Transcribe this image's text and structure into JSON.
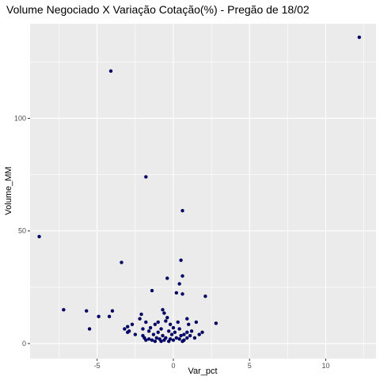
{
  "chart_data": {
    "type": "scatter",
    "title": "Volume Negociado X Variação Cotação(%) - Pregão de 18/02",
    "xlabel": "Var_pct",
    "ylabel": "Volume_MM",
    "xlim": [
      -9.4,
      13.3
    ],
    "ylim": [
      -6.7,
      142
    ],
    "x_ticks": [
      -5,
      0,
      5,
      10
    ],
    "y_ticks": [
      0,
      50,
      100
    ],
    "x_tick_labels": [
      "-5",
      "0",
      "5",
      "10"
    ],
    "y_tick_labels": [
      "0",
      "50",
      "100"
    ],
    "grid": true,
    "point_color": "#00008B",
    "panel_color": "#EBEBEB",
    "points": [
      {
        "x": 12.2,
        "y": 136
      },
      {
        "x": -4.1,
        "y": 121
      },
      {
        "x": -1.8,
        "y": 74
      },
      {
        "x": 0.6,
        "y": 59
      },
      {
        "x": -8.8,
        "y": 47.5
      },
      {
        "x": 0.5,
        "y": 37
      },
      {
        "x": -3.4,
        "y": 36
      },
      {
        "x": 0.6,
        "y": 30
      },
      {
        "x": -0.4,
        "y": 29
      },
      {
        "x": 0.4,
        "y": 26.5
      },
      {
        "x": -1.4,
        "y": 23.5
      },
      {
        "x": 0.2,
        "y": 22.5
      },
      {
        "x": 0.6,
        "y": 22
      },
      {
        "x": 2.1,
        "y": 21
      },
      {
        "x": -7.2,
        "y": 15
      },
      {
        "x": -0.7,
        "y": 15
      },
      {
        "x": -5.7,
        "y": 14.5
      },
      {
        "x": -4.0,
        "y": 14.5
      },
      {
        "x": -0.6,
        "y": 13.5
      },
      {
        "x": -2.1,
        "y": 13
      },
      {
        "x": -4.2,
        "y": 12
      },
      {
        "x": -4.9,
        "y": 12
      },
      {
        "x": -0.4,
        "y": 11.5
      },
      {
        "x": -2.2,
        "y": 11
      },
      {
        "x": 0.9,
        "y": 11
      },
      {
        "x": -0.5,
        "y": 10
      },
      {
        "x": -1.8,
        "y": 9.5
      },
      {
        "x": -1.0,
        "y": 9.5
      },
      {
        "x": 0.3,
        "y": 9.5
      },
      {
        "x": 1.5,
        "y": 9.5
      },
      {
        "x": 2.8,
        "y": 9
      },
      {
        "x": -2.7,
        "y": 8.5
      },
      {
        "x": -1.2,
        "y": 8.5
      },
      {
        "x": -0.2,
        "y": 8.5
      },
      {
        "x": 1.0,
        "y": 8.5
      },
      {
        "x": -3.0,
        "y": 7.5
      },
      {
        "x": -1.5,
        "y": 7
      },
      {
        "x": 0.0,
        "y": 7
      },
      {
        "x": -5.5,
        "y": 6.5
      },
      {
        "x": -3.2,
        "y": 6.5
      },
      {
        "x": -2.0,
        "y": 6.5
      },
      {
        "x": -0.8,
        "y": 6.5
      },
      {
        "x": 0.4,
        "y": 6.5
      },
      {
        "x": -2.9,
        "y": 5.5
      },
      {
        "x": -1.6,
        "y": 5.5
      },
      {
        "x": -0.3,
        "y": 5.5
      },
      {
        "x": 1.2,
        "y": 5.5
      },
      {
        "x": -3.0,
        "y": 5
      },
      {
        "x": -1.0,
        "y": 5
      },
      {
        "x": 0.1,
        "y": 5
      },
      {
        "x": 0.9,
        "y": 5
      },
      {
        "x": 1.9,
        "y": 5
      },
      {
        "x": -2.5,
        "y": 4
      },
      {
        "x": -1.3,
        "y": 4
      },
      {
        "x": -0.1,
        "y": 4
      },
      {
        "x": 0.7,
        "y": 4
      },
      {
        "x": 1.7,
        "y": 4
      },
      {
        "x": -2.0,
        "y": 3.5
      },
      {
        "x": -0.7,
        "y": 3.5
      },
      {
        "x": 0.5,
        "y": 3.5
      },
      {
        "x": 1.1,
        "y": 3.5
      },
      {
        "x": -1.9,
        "y": 2.5
      },
      {
        "x": -1.1,
        "y": 2.5
      },
      {
        "x": -0.5,
        "y": 2.5
      },
      {
        "x": 0.2,
        "y": 2.5
      },
      {
        "x": 0.9,
        "y": 2.5
      },
      {
        "x": 1.4,
        "y": 2.5
      },
      {
        "x": -1.6,
        "y": 2
      },
      {
        "x": -0.9,
        "y": 2
      },
      {
        "x": -0.2,
        "y": 2
      },
      {
        "x": 0.4,
        "y": 2
      },
      {
        "x": -1.4,
        "y": 1.5
      },
      {
        "x": -0.6,
        "y": 1.5
      },
      {
        "x": 0.0,
        "y": 1.5
      },
      {
        "x": 0.7,
        "y": 1.5
      },
      {
        "x": -1.8,
        "y": 1.5
      },
      {
        "x": -0.3,
        "y": 1
      },
      {
        "x": 0.6,
        "y": 1
      },
      {
        "x": -1.2,
        "y": 1
      },
      {
        "x": -0.8,
        "y": 1
      }
    ]
  }
}
